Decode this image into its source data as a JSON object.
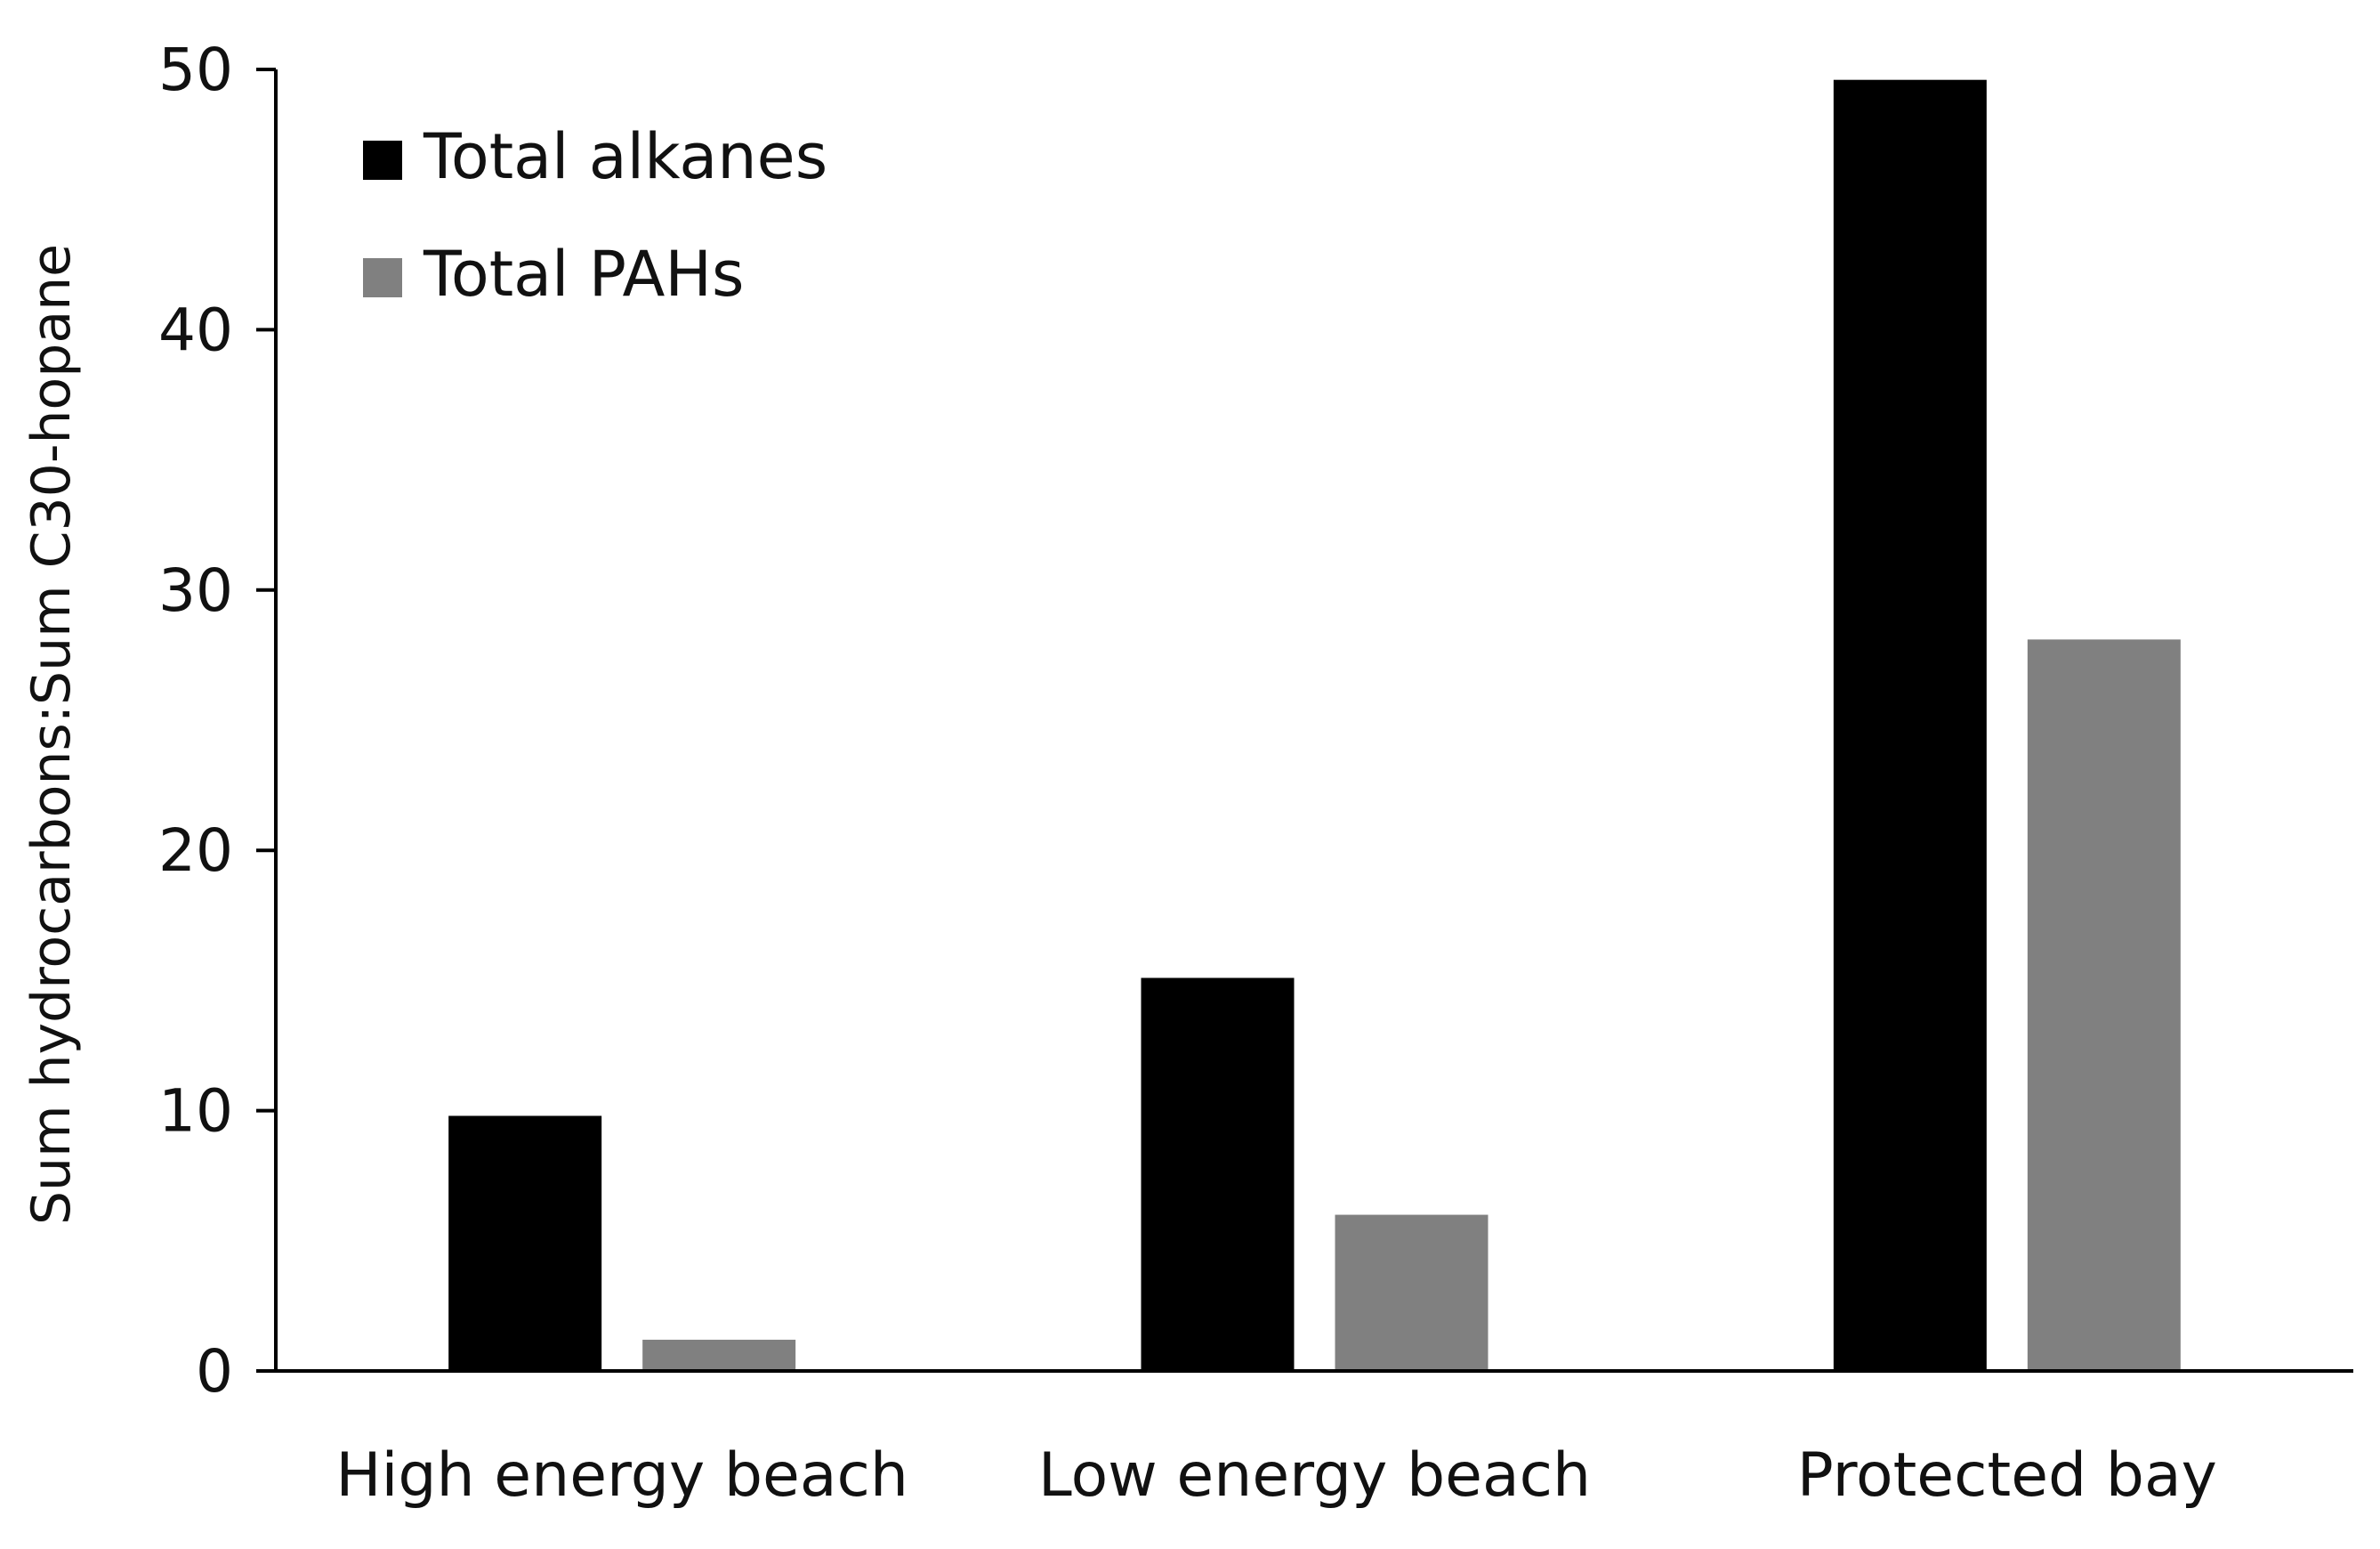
{
  "chart_data": {
    "type": "bar",
    "title": "",
    "xlabel": "",
    "ylabel": "Sum hydrocarbons:Sum C30-hopane",
    "categories": [
      "High energy beach",
      "Low energy beach",
      "Protected bay"
    ],
    "series": [
      {
        "name": "Total alkanes",
        "color": "#000000",
        "values": [
          9.8,
          15.1,
          49.6
        ]
      },
      {
        "name": "Total PAHs",
        "color": "#808080",
        "values": [
          1.2,
          6.0,
          28.1
        ]
      }
    ],
    "ylim": [
      0,
      50
    ],
    "yticks": [
      0,
      10,
      20,
      30,
      40,
      50
    ],
    "grid": false,
    "legend_position": "top-left"
  }
}
